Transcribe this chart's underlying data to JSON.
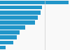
{
  "values": [
    95,
    58,
    56,
    52,
    48,
    35,
    27,
    23,
    18,
    8
  ],
  "bar_color": "#2196c9",
  "background_color": "#f9f9f9",
  "grid_color": "#cccccc",
  "figsize": [
    1.0,
    0.71
  ],
  "dpi": 100,
  "n_bars": 10
}
